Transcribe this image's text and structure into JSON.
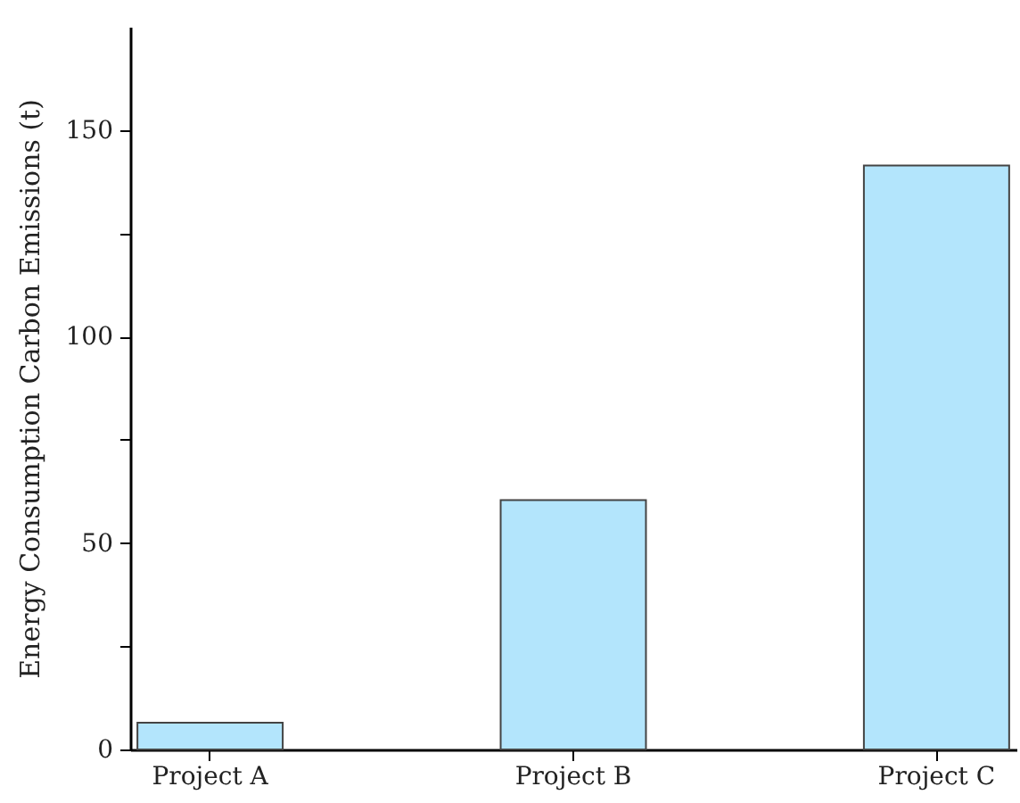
{
  "chart_data": {
    "type": "bar",
    "ylabel": "Energy Consumption Carbon Emissions (t)",
    "categories": [
      "Project A",
      "Project B",
      "Project C"
    ],
    "values": [
      6.5,
      60.4,
      141.4
    ],
    "color": "#b3e5fc",
    "ylim": [
      0,
      175
    ],
    "yticks": [
      0,
      {
        "value": 25,
        "label": null
      },
      50,
      {
        "value": 75,
        "label": null
      },
      100,
      {
        "value": 125,
        "label": null
      },
      150
    ],
    "grid": false
  }
}
